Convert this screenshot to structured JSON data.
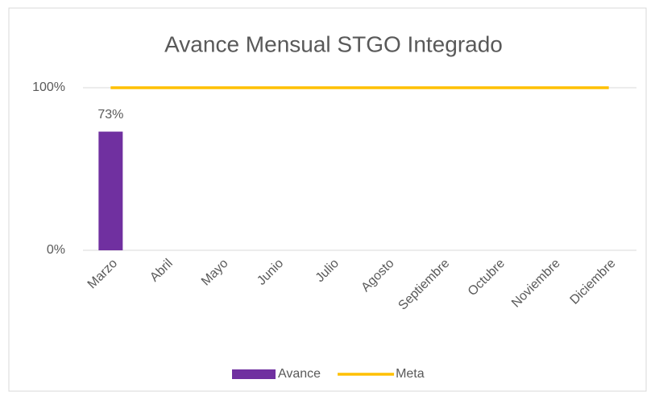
{
  "chart_data": {
    "type": "combo",
    "title": "Avance Mensual STGO Integrado",
    "categories": [
      "Marzo",
      "Abril",
      "Mayo",
      "Junio",
      "Julio",
      "Agosto",
      "Septiembre",
      "Octubre",
      "Noviembre",
      "Diciembre"
    ],
    "series": [
      {
        "name": "Avance",
        "type": "bar",
        "color": "#7030a0",
        "values": [
          73,
          null,
          null,
          null,
          null,
          null,
          null,
          null,
          null,
          null
        ],
        "value_labels": [
          "73%",
          null,
          null,
          null,
          null,
          null,
          null,
          null,
          null,
          null
        ]
      },
      {
        "name": "Meta",
        "type": "line",
        "color": "#ffc000",
        "values": [
          100,
          100,
          100,
          100,
          100,
          100,
          100,
          100,
          100,
          100
        ]
      }
    ],
    "ylim": [
      0,
      100
    ],
    "yticks": [
      {
        "value": 0,
        "label": "0%"
      },
      {
        "value": 100,
        "label": "100%"
      }
    ],
    "grid": true,
    "legend": "bottom"
  }
}
